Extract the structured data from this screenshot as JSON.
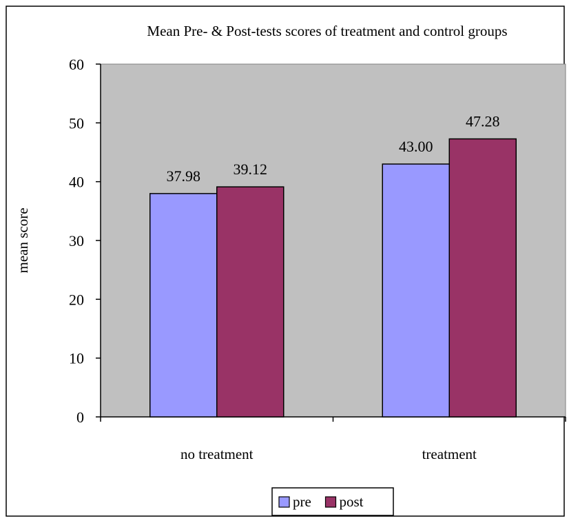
{
  "chart_data": {
    "type": "bar",
    "title": "Mean Pre- & Post-tests scores of treatment and control  groups",
    "xlabel": "",
    "ylabel": "mean score",
    "categories": [
      "no treatment",
      "treatment"
    ],
    "series": [
      {
        "name": "pre",
        "values": [
          37.98,
          43.0
        ],
        "labels": [
          "37.98",
          "43.00"
        ],
        "color": "#9999ff"
      },
      {
        "name": "post",
        "values": [
          39.12,
          47.28
        ],
        "labels": [
          "39.12",
          "47.28"
        ],
        "color": "#993366"
      }
    ],
    "ylim": [
      0,
      60
    ],
    "yticks": [
      "0",
      "10",
      "20",
      "30",
      "40",
      "50",
      "60"
    ],
    "plot_background": "#c0c0c0",
    "grid": false,
    "legend_position": "bottom"
  }
}
